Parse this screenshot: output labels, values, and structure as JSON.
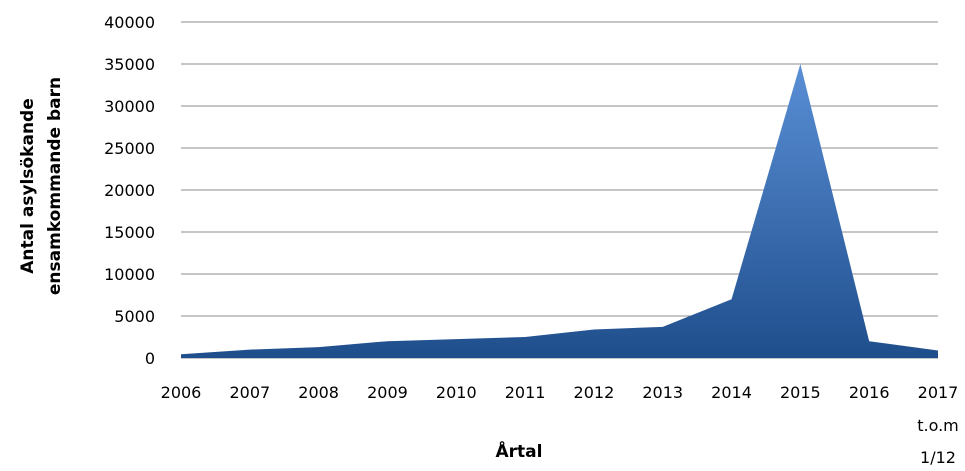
{
  "chart_data": {
    "type": "area",
    "title": "",
    "xlabel": "Årtal",
    "ylabel_lines": [
      "Antal asylsökande",
      "ensamkommande barn"
    ],
    "categories": [
      "2006",
      "2007",
      "2008",
      "2009",
      "2010",
      "2011",
      "2012",
      "2013",
      "2014",
      "2015",
      "2016",
      "2017"
    ],
    "last_category_note": [
      "t.o.m",
      "1/12"
    ],
    "values": [
      450,
      1000,
      1300,
      2000,
      2250,
      2500,
      3400,
      3700,
      7000,
      35000,
      2000,
      900
    ],
    "ylim": [
      0,
      40000
    ],
    "yticks": [
      "0",
      "5000",
      "10000",
      "15000",
      "20000",
      "25000",
      "30000",
      "35000",
      "40000"
    ],
    "grid": true,
    "legend": "none",
    "colors": {
      "fill_top": "#5a8fd6",
      "fill_bottom": "#1f4e8c",
      "grid": "#8c8c8c"
    }
  }
}
